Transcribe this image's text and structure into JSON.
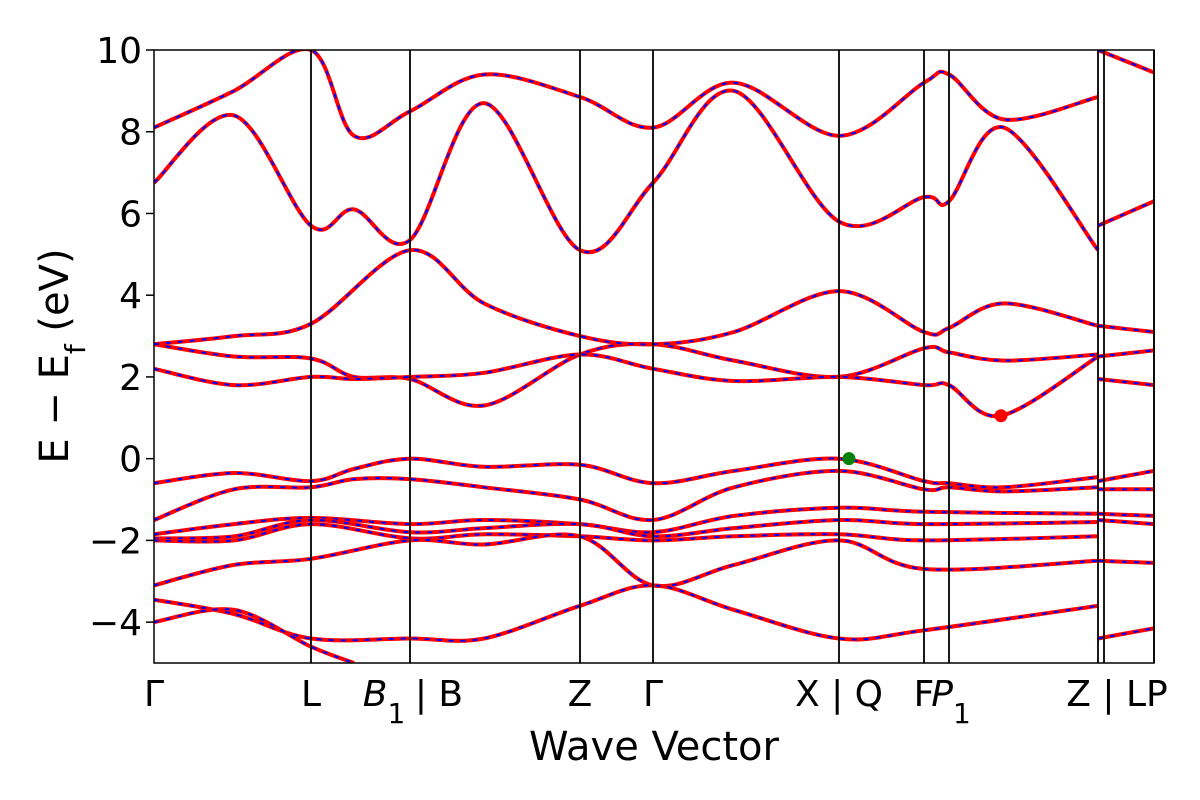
{
  "chart_data": {
    "type": "line",
    "title": "",
    "xlabel": "Wave Vector",
    "ylabel": "E − E_f (eV)",
    "ylabel_main": "E − E",
    "ylabel_sub": "f",
    "ylabel_unit": " (eV)",
    "ylim": [
      -5,
      10
    ],
    "yticks": [
      -4,
      -2,
      0,
      2,
      4,
      6,
      8,
      10
    ],
    "ytick_labels": [
      "−4",
      "−2",
      "0",
      "2",
      "4",
      "6",
      "8",
      "10"
    ],
    "xlim": [
      0,
      1
    ],
    "grid": false,
    "kpath_positions": [
      0,
      0.157,
      0.256,
      0.426,
      0.499,
      0.685,
      0.77,
      0.795,
      0.944,
      0.95,
      1.0
    ],
    "kpath_labels": [
      {
        "text": "Γ",
        "pos": 0
      },
      {
        "text": "L",
        "pos": 0.157
      },
      {
        "text": "B",
        "sub": "1",
        "italic": true,
        "pos": 0.23
      },
      {
        "text": "| B",
        "pos": 0.285
      },
      {
        "text": "Z",
        "pos": 0.426
      },
      {
        "text": "Γ",
        "pos": 0.499
      },
      {
        "text": "X | Q",
        "pos": 0.685
      },
      {
        "text": "F",
        "pos": 0.77
      },
      {
        "text": "P",
        "sub": "1",
        "italic": true,
        "pos": 0.797
      },
      {
        "text": "Z | LP",
        "pos": 0.963
      }
    ],
    "series_style": {
      "solid_color": "#ff0000",
      "dashed_color": "#0000ff"
    },
    "markers": [
      {
        "x": 0.695,
        "y": 0.0,
        "color": "#008000",
        "label": "VBM"
      },
      {
        "x": 0.847,
        "y": 1.05,
        "color": "#ff0000",
        "label": "CBM"
      }
    ],
    "bands": [
      {
        "x": [
          0,
          0.08,
          0.157,
          0.2,
          0.256,
          0.33,
          0.426,
          0.499,
          0.58,
          0.685,
          0.77,
          0.795,
          0.85,
          0.944
        ],
        "y": [
          -0.6,
          -0.35,
          -0.55,
          -0.25,
          0.0,
          -0.2,
          -0.15,
          -0.6,
          -0.3,
          0.0,
          -0.55,
          -0.6,
          -0.7,
          -0.45
        ]
      },
      {
        "x": [
          0,
          0.08,
          0.157,
          0.2,
          0.256,
          0.33,
          0.426,
          0.499,
          0.58,
          0.685,
          0.77,
          0.795,
          0.85,
          0.944
        ],
        "y": [
          -1.5,
          -0.75,
          -0.7,
          -0.5,
          -0.5,
          -0.7,
          -1.0,
          -1.5,
          -0.7,
          -0.3,
          -0.75,
          -0.7,
          -0.8,
          -0.7
        ]
      },
      {
        "x": [
          0,
          0.08,
          0.157,
          0.256,
          0.33,
          0.426,
          0.499,
          0.58,
          0.685,
          0.77,
          0.944
        ],
        "y": [
          -1.85,
          -1.6,
          -1.45,
          -1.6,
          -1.5,
          -1.6,
          -1.8,
          -1.4,
          -1.2,
          -1.3,
          -1.35
        ]
      },
      {
        "x": [
          0,
          0.08,
          0.157,
          0.256,
          0.33,
          0.426,
          0.499,
          0.58,
          0.685,
          0.77,
          0.944
        ],
        "y": [
          -1.95,
          -1.9,
          -1.5,
          -1.8,
          -1.7,
          -1.6,
          -1.9,
          -1.7,
          -1.5,
          -1.6,
          -1.55
        ]
      },
      {
        "x": [
          0,
          0.08,
          0.157,
          0.256,
          0.33,
          0.426,
          0.499,
          0.58,
          0.685,
          0.77,
          0.944
        ],
        "y": [
          -2.0,
          -2.0,
          -1.6,
          -1.95,
          -1.85,
          -1.9,
          -2.0,
          -1.9,
          -1.85,
          -2.0,
          -1.9
        ]
      },
      {
        "x": [
          0,
          0.08,
          0.157,
          0.256,
          0.33,
          0.426,
          0.499,
          0.58,
          0.685,
          0.77,
          0.944
        ],
        "y": [
          -3.1,
          -2.6,
          -2.45,
          -2.0,
          -2.1,
          -1.9,
          -3.1,
          -2.6,
          -2.0,
          -2.7,
          -2.5
        ]
      },
      {
        "x": [
          0,
          0.08,
          0.157,
          0.256,
          0.33,
          0.426,
          0.499,
          0.58,
          0.685,
          0.77,
          0.944
        ],
        "y": [
          -3.45,
          -3.8,
          -4.4,
          -4.4,
          -4.4,
          -3.6,
          -3.1,
          -3.7,
          -4.4,
          -4.2,
          -3.6
        ]
      },
      {
        "x": [
          0,
          0.08,
          0.157,
          0.2
        ],
        "y": [
          -4.0,
          -3.7,
          -4.6,
          -5.0
        ]
      },
      {
        "x": [
          0,
          0.08,
          0.157,
          0.2,
          0.256,
          0.33,
          0.426,
          0.499,
          0.58,
          0.685,
          0.77,
          0.795,
          0.85,
          0.944
        ],
        "y": [
          2.8,
          2.5,
          2.45,
          2.0,
          1.95,
          1.3,
          2.55,
          2.8,
          2.4,
          2.0,
          2.7,
          2.6,
          2.4,
          2.55
        ]
      },
      {
        "x": [
          0,
          0.08,
          0.157,
          0.2,
          0.256,
          0.33,
          0.426,
          0.499,
          0.58,
          0.685,
          0.77,
          0.795,
          0.847,
          0.944
        ],
        "y": [
          2.2,
          1.8,
          2.0,
          1.95,
          2.0,
          2.1,
          2.55,
          2.2,
          1.9,
          2.0,
          1.8,
          1.8,
          1.05,
          2.5
        ]
      },
      {
        "x": [
          0,
          0.08,
          0.157,
          0.256,
          0.33,
          0.426,
          0.499,
          0.58,
          0.685,
          0.77,
          0.795,
          0.85,
          0.944
        ],
        "y": [
          2.8,
          3.0,
          3.3,
          5.1,
          3.8,
          3.0,
          2.8,
          3.1,
          4.1,
          3.1,
          3.2,
          3.8,
          3.25
        ]
      },
      {
        "x": [
          0,
          0.08,
          0.157,
          0.2,
          0.256,
          0.33,
          0.426,
          0.499,
          0.58,
          0.685,
          0.77,
          0.795,
          0.85,
          0.944
        ],
        "y": [
          6.75,
          8.4,
          5.7,
          6.1,
          5.35,
          8.7,
          5.1,
          6.75,
          9.0,
          5.8,
          6.4,
          6.3,
          8.1,
          5.1
        ]
      },
      {
        "x": [
          0,
          0.08,
          0.157,
          0.2,
          0.256,
          0.33,
          0.426,
          0.499,
          0.58,
          0.685,
          0.77,
          0.795,
          0.85,
          0.944
        ],
        "y": [
          8.1,
          9.0,
          10.0,
          7.9,
          8.5,
          9.4,
          8.85,
          8.1,
          9.2,
          7.9,
          9.2,
          9.4,
          8.3,
          8.85
        ]
      },
      {
        "x": [
          0.944,
          1.0
        ],
        "y": [
          -0.55,
          -0.3
        ]
      },
      {
        "x": [
          0.944,
          1.0
        ],
        "y": [
          -0.75,
          -0.75
        ]
      },
      {
        "x": [
          0.944,
          1.0
        ],
        "y": [
          -1.35,
          -1.4
        ]
      },
      {
        "x": [
          0.944,
          1.0
        ],
        "y": [
          -1.5,
          -1.6
        ]
      },
      {
        "x": [
          0.944,
          1.0
        ],
        "y": [
          -2.5,
          -2.55
        ]
      },
      {
        "x": [
          0.944,
          1.0
        ],
        "y": [
          -4.4,
          -4.15
        ]
      },
      {
        "x": [
          0.944,
          1.0
        ],
        "y": [
          1.95,
          1.8
        ]
      },
      {
        "x": [
          0.944,
          1.0
        ],
        "y": [
          2.5,
          2.65
        ]
      },
      {
        "x": [
          0.944,
          1.0
        ],
        "y": [
          3.25,
          3.1
        ]
      },
      {
        "x": [
          0.944,
          1.0
        ],
        "y": [
          5.7,
          6.3
        ]
      },
      {
        "x": [
          0.944,
          1.0
        ],
        "y": [
          10.0,
          9.45
        ]
      }
    ]
  }
}
